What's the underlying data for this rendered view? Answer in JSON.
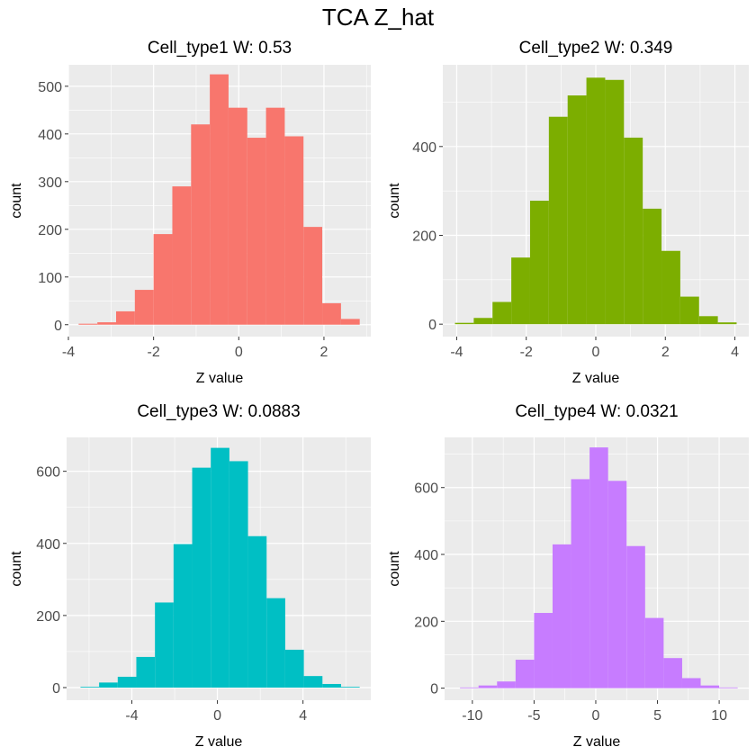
{
  "figure_title": "TCA Z_hat",
  "colors": {
    "panel_bg": "#EBEBEB",
    "grid": "#FFFFFF",
    "tick_text": "#4D4D4D"
  },
  "chart_data": [
    {
      "type": "bar",
      "title": "Cell_type1  W: 0.53",
      "xlabel": "Z value",
      "ylabel": "count",
      "fill": "#F8766D",
      "xlim": [
        -4.0,
        3.1
      ],
      "ylim": [
        -25,
        545
      ],
      "xticks": [
        -4,
        -2,
        0,
        2
      ],
      "xtick_labels": [
        "-4",
        "-2",
        "0",
        "2"
      ],
      "yticks": [
        0,
        100,
        200,
        300,
        400,
        500
      ],
      "ytick_labels": [
        "0",
        "100",
        "200",
        "300",
        "400",
        "500"
      ],
      "bin_edges": [
        -3.76,
        -3.32,
        -2.88,
        -2.44,
        -2.0,
        -1.56,
        -1.12,
        -0.68,
        -0.24,
        0.2,
        0.64,
        1.08,
        1.52,
        1.96,
        2.4,
        2.84
      ],
      "counts": [
        2,
        5,
        28,
        73,
        190,
        290,
        420,
        525,
        455,
        392,
        455,
        395,
        205,
        45,
        12
      ],
      "grid": true
    },
    {
      "type": "bar",
      "title": "Cell_type2  W: 0.349",
      "xlabel": "Z value",
      "ylabel": "count",
      "fill": "#7CAE00",
      "xlim": [
        -4.4,
        4.4
      ],
      "ylim": [
        -28,
        584
      ],
      "xticks": [
        -4,
        -2,
        0,
        2,
        4
      ],
      "xtick_labels": [
        "-4",
        "-2",
        "0",
        "2",
        "4"
      ],
      "yticks": [
        0,
        200,
        400
      ],
      "ytick_labels": [
        "0",
        "200",
        "400"
      ],
      "bin_edges": [
        -4.05,
        -3.51,
        -2.97,
        -2.43,
        -1.89,
        -1.35,
        -0.81,
        -0.27,
        0.27,
        0.81,
        1.35,
        1.89,
        2.43,
        2.97,
        3.51,
        4.05
      ],
      "counts": [
        3,
        14,
        50,
        150,
        278,
        467,
        515,
        555,
        550,
        420,
        260,
        165,
        62,
        18,
        4
      ],
      "grid": true
    },
    {
      "type": "bar",
      "title": "Cell_type3  W: 0.0883",
      "xlabel": "Z value",
      "ylabel": "count",
      "fill": "#00BFC4",
      "xlim": [
        -7.05,
        7.17
      ],
      "ylim": [
        -35,
        694
      ],
      "xticks": [
        -4,
        0,
        4
      ],
      "xtick_labels": [
        "-4",
        "0",
        "4"
      ],
      "yticks": [
        0,
        200,
        400,
        600
      ],
      "ytick_labels": [
        "0",
        "200",
        "400",
        "600"
      ],
      "bin_edges": [
        -6.4,
        -5.53,
        -4.66,
        -3.79,
        -2.92,
        -2.05,
        -1.18,
        -0.31,
        0.56,
        1.43,
        2.3,
        3.17,
        4.04,
        4.91,
        5.78,
        6.65
      ],
      "counts": [
        2,
        14,
        30,
        85,
        236,
        398,
        610,
        665,
        628,
        420,
        248,
        105,
        32,
        10,
        2
      ],
      "grid": true
    },
    {
      "type": "bar",
      "title": "Cell_type4  W: 0.0321",
      "xlabel": "Z value",
      "ylabel": "count",
      "fill": "#C77CFF",
      "xlim": [
        -12.25,
        12.4
      ],
      "ylim": [
        -36,
        750
      ],
      "xticks": [
        -10,
        -5,
        0,
        5,
        10
      ],
      "xtick_labels": [
        "-10",
        "-5",
        "0",
        "5",
        "10"
      ],
      "yticks": [
        0,
        200,
        400,
        600
      ],
      "ytick_labels": [
        "0",
        "200",
        "400",
        "600"
      ],
      "bin_edges": [
        -11.0,
        -9.5,
        -8.0,
        -6.5,
        -5.0,
        -3.5,
        -2.0,
        -0.5,
        1.0,
        2.5,
        4.0,
        5.5,
        7.0,
        8.5,
        10.0,
        11.5
      ],
      "counts": [
        2,
        8,
        20,
        85,
        225,
        430,
        625,
        720,
        620,
        425,
        210,
        90,
        30,
        8,
        2
      ],
      "grid": true
    }
  ]
}
